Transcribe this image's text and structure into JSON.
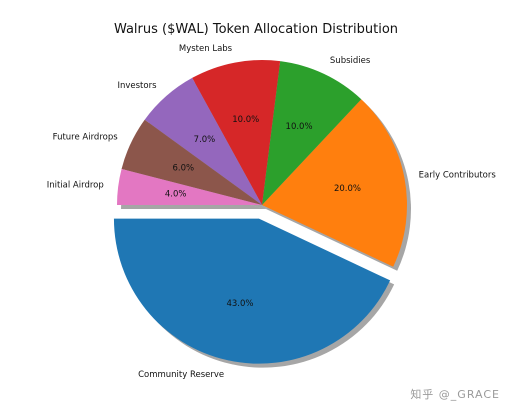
{
  "chart_data": {
    "type": "pie",
    "title": "Walrus ($WAL) Token Allocation Distribution",
    "slices": [
      {
        "label": "Community Reserve",
        "value": 43.0,
        "pct_label": "43.0%",
        "color": "#1f77b4",
        "exploded": true
      },
      {
        "label": "Early Contributors",
        "value": 20.0,
        "pct_label": "20.0%",
        "color": "#ff7f0e"
      },
      {
        "label": "Subsidies",
        "value": 10.0,
        "pct_label": "10.0%",
        "color": "#2ca02c"
      },
      {
        "label": "Mysten Labs",
        "value": 10.0,
        "pct_label": "10.0%",
        "color": "#d62728"
      },
      {
        "label": "Investors",
        "value": 7.0,
        "pct_label": "7.0%",
        "color": "#9467bd"
      },
      {
        "label": "Future Airdrops",
        "value": 6.0,
        "pct_label": "6.0%",
        "color": "#8c564b"
      },
      {
        "label": "Initial Airdrop",
        "value": 4.0,
        "pct_label": "4.0%",
        "color": "#e377c2"
      }
    ],
    "shadow": true
  },
  "watermark": "知乎 @_GRACE"
}
